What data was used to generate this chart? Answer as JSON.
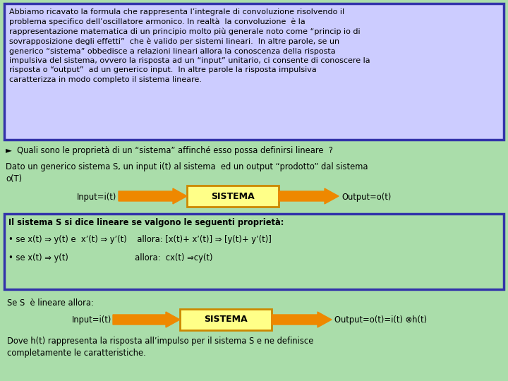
{
  "bg_color": "#aaddaa",
  "box1_color": "#ccccff",
  "box1_border": "#3333aa",
  "box2_color": "#aaddaa",
  "box2_border": "#3333aa",
  "sistema_box_color": "#ffff88",
  "sistema_box_border": "#cc8800",
  "arrow_color": "#ee8800",
  "text_color": "#000000",
  "title_text": "Abbiamo ricavato la formula che rappresenta l’integrale di convoluzione risolvendo il\nproblema specifico dell’oscillatore armonico. In realtà  la convoluzione  è la\nrappresentazione matematica di un principio molto più generale noto come “princip io di\nsovrapposizione degli effetti”  che è valido per sistemi lineari.  In altre parole, se un\ngenerico “sistema” obbedisce a relazioni lineari allora la conoscenza della risposta\nimpulsiva del sistema, ovvero la risposta ad un “input” unitario, ci consente di conoscere la\nrisposta o “output”  ad un generico input.  In altre parole la risposta impulsiva\ncaratterizza in modo completo il sistema lineare.",
  "quali_text": "►  Quali sono le proprietà di un “sistema” affinché esso possa definirsi lineare  ?",
  "dato_text": "Dato un generico sistema S, un input i(t) al sistema  ed un output “prodotto” dal sistema\no(T)",
  "sistema1_label": "SISTEMA",
  "input1_label": "Input=i(t)",
  "output1_label": "Output=o(t)",
  "box2_line1": "Il sistema S si dice lineare se valgono le seguenti proprietà:",
  "box2_line2": "• se x(t) ⇒ y(t) e  x’(t) ⇒ y’(t)    allora: [x(t)+ x’(t)] ⇒ [y(t)+ y’(t)]",
  "box2_line3": "• se x(t) ⇒ y(t)                          allora:  cx(t) ⇒cy(t)",
  "se_text": "Se S  è lineare allora:",
  "sistema2_label": "SISTEMA",
  "input2_label": "Input=i(t)",
  "output2_label": "Output=o(t)=i(t) ⊗h(t)",
  "dove_text": "Dove h(t) rappresenta la risposta all’impulso per il sistema S e ne definisce\ncompletamente le caratteristiche."
}
